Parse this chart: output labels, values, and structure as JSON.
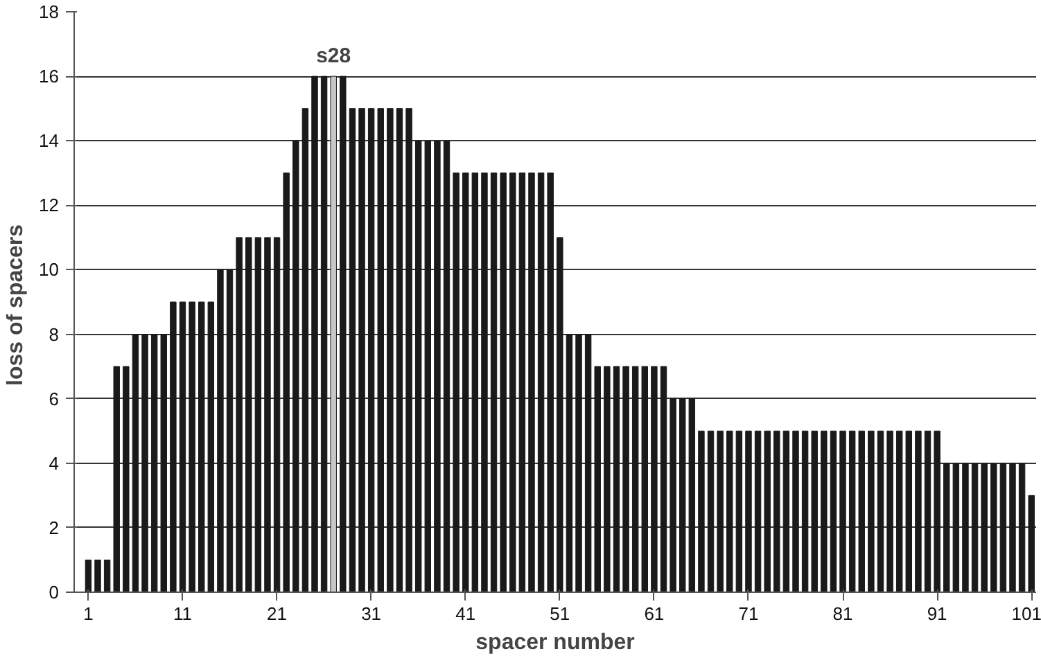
{
  "chart_data": {
    "type": "bar",
    "xlabel": "spacer number",
    "ylabel": "loss of  spacers",
    "x": [
      1,
      2,
      3,
      4,
      5,
      6,
      7,
      8,
      9,
      10,
      11,
      12,
      13,
      14,
      15,
      16,
      17,
      18,
      19,
      20,
      21,
      22,
      23,
      24,
      25,
      26,
      27,
      28,
      29,
      30,
      31,
      32,
      33,
      34,
      35,
      36,
      37,
      38,
      39,
      40,
      41,
      42,
      43,
      44,
      45,
      46,
      47,
      48,
      49,
      50,
      51,
      52,
      53,
      54,
      55,
      56,
      57,
      58,
      59,
      60,
      61,
      62,
      63,
      64,
      65,
      66,
      67,
      68,
      69,
      70,
      71,
      72,
      73,
      74,
      75,
      76,
      77,
      78,
      79,
      80,
      81,
      82,
      83,
      84,
      85,
      86,
      87,
      88,
      89,
      90,
      91,
      92,
      93,
      94,
      95,
      96,
      97,
      98,
      99,
      100,
      101
    ],
    "values": [
      1,
      1,
      1,
      7,
      7,
      8,
      8,
      8,
      8,
      9,
      9,
      9,
      9,
      9,
      10,
      10,
      11,
      11,
      11,
      11,
      11,
      13,
      14,
      15,
      16,
      16,
      16,
      16,
      15,
      15,
      15,
      15,
      15,
      15,
      15,
      14,
      14,
      14,
      14,
      13,
      13,
      13,
      13,
      13,
      13,
      13,
      13,
      13,
      13,
      13,
      11,
      8,
      8,
      8,
      7,
      7,
      7,
      7,
      7,
      7,
      7,
      7,
      6,
      6,
      6,
      5,
      5,
      5,
      5,
      5,
      5,
      5,
      5,
      5,
      5,
      5,
      5,
      5,
      5,
      5,
      5,
      5,
      5,
      5,
      5,
      5,
      5,
      5,
      5,
      5,
      5,
      4,
      4,
      4,
      4,
      4,
      4,
      4,
      4,
      4,
      3
    ],
    "color": "#1a1a1a",
    "colors": [
      "#1a1a1a",
      "#1a1a1a",
      "#1a1a1a",
      "#1a1a1a",
      "#1a1a1a",
      "#1a1a1a",
      "#1a1a1a",
      "#1a1a1a",
      "#1a1a1a",
      "#1a1a1a",
      "#1a1a1a",
      "#1a1a1a",
      "#1a1a1a",
      "#1a1a1a",
      "#1a1a1a",
      "#1a1a1a",
      "#1a1a1a",
      "#1a1a1a",
      "#1a1a1a",
      "#1a1a1a",
      "#1a1a1a",
      "#1a1a1a",
      "#1a1a1a",
      "#1a1a1a",
      "#1a1a1a",
      "#1a1a1a",
      "#c8c8c8",
      "#1a1a1a",
      "#1a1a1a",
      "#1a1a1a",
      "#1a1a1a",
      "#1a1a1a",
      "#1a1a1a",
      "#1a1a1a",
      "#1a1a1a",
      "#1a1a1a",
      "#1a1a1a",
      "#1a1a1a",
      "#1a1a1a",
      "#1a1a1a",
      "#1a1a1a",
      "#1a1a1a",
      "#1a1a1a",
      "#1a1a1a",
      "#1a1a1a",
      "#1a1a1a",
      "#1a1a1a",
      "#1a1a1a",
      "#1a1a1a",
      "#1a1a1a",
      "#1a1a1a",
      "#1a1a1a",
      "#1a1a1a",
      "#1a1a1a",
      "#1a1a1a",
      "#1a1a1a",
      "#1a1a1a",
      "#1a1a1a",
      "#1a1a1a",
      "#1a1a1a",
      "#1a1a1a",
      "#1a1a1a",
      "#1a1a1a",
      "#1a1a1a",
      "#1a1a1a",
      "#1a1a1a",
      "#1a1a1a",
      "#1a1a1a",
      "#1a1a1a",
      "#1a1a1a",
      "#1a1a1a",
      "#1a1a1a",
      "#1a1a1a",
      "#1a1a1a",
      "#1a1a1a",
      "#1a1a1a",
      "#1a1a1a",
      "#1a1a1a",
      "#1a1a1a",
      "#1a1a1a",
      "#1a1a1a",
      "#1a1a1a",
      "#1a1a1a",
      "#1a1a1a",
      "#1a1a1a",
      "#1a1a1a",
      "#1a1a1a",
      "#1a1a1a",
      "#1a1a1a",
      "#1a1a1a",
      "#1a1a1a",
      "#1a1a1a",
      "#1a1a1a",
      "#1a1a1a",
      "#1a1a1a",
      "#1a1a1a",
      "#1a1a1a",
      "#1a1a1a",
      "#1a1a1a",
      "#1a1a1a",
      "#1a1a1a"
    ],
    "annotations": [
      {
        "text": "s28",
        "x": 27,
        "y": 16
      }
    ],
    "xlim": [
      -0.5,
      101.5
    ],
    "xticks": [
      1,
      11,
      21,
      31,
      41,
      51,
      61,
      71,
      81,
      91,
      101
    ],
    "ylim": [
      0,
      18
    ],
    "yticks": [
      0,
      2,
      4,
      6,
      8,
      10,
      12,
      14,
      16,
      18
    ],
    "grid": "y"
  }
}
